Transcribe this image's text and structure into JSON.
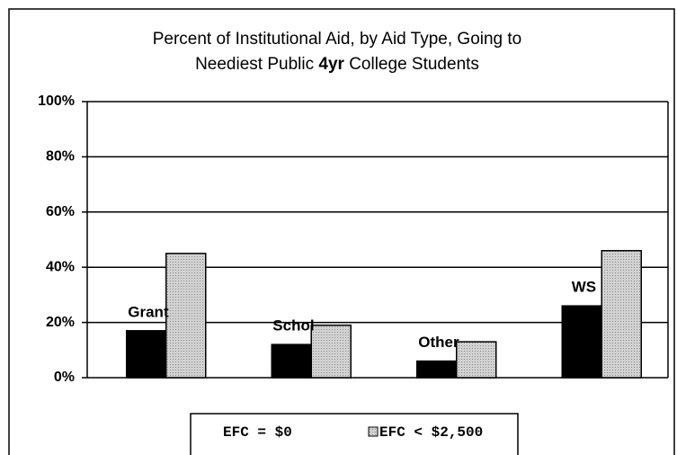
{
  "chart_data": {
    "type": "bar",
    "title": [
      "Percent of Institutional  Aid, by Aid Type, Going to",
      "Neediest Public",
      "4yr",
      "College Students"
    ],
    "categories": [
      "Grant",
      "Schol",
      "Other",
      "WS"
    ],
    "series": [
      {
        "name": "EFC = $0",
        "color": "#000000",
        "values": [
          17,
          12,
          6,
          26
        ]
      },
      {
        "name": "EFC < $2,500",
        "color": "#c4c4c4",
        "values": [
          45,
          19,
          13,
          46
        ]
      }
    ],
    "ylim": [
      0,
      100
    ],
    "yticks": [
      {
        "value": 0,
        "label": "0%"
      },
      {
        "value": 20,
        "label": "20%"
      },
      {
        "value": 40,
        "label": "40%"
      },
      {
        "value": 60,
        "label": "60%"
      },
      {
        "value": 80,
        "label": "80%"
      },
      {
        "value": 100,
        "label": "100%"
      }
    ],
    "grid": true,
    "legend": "bottom"
  }
}
